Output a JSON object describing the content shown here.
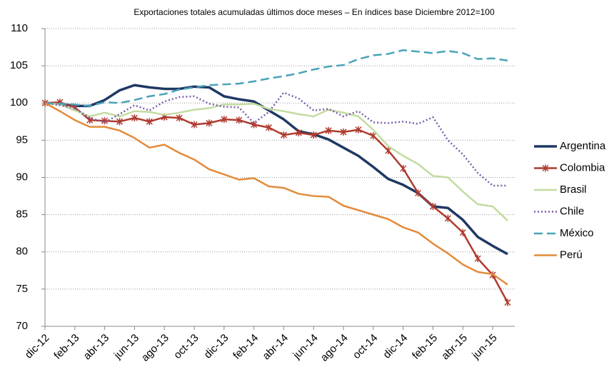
{
  "chart_data": {
    "type": "line",
    "title": "Exportaciones totales acumuladas últimos doce meses – En índices base Diciembre 2012=100",
    "categories": [
      "dic-12",
      null,
      "feb-13",
      null,
      "abr-13",
      null,
      "jun-13",
      null,
      "ago-13",
      null,
      "oct-13",
      null,
      "dic-13",
      null,
      "feb-14",
      null,
      "abr-14",
      null,
      "jun-14",
      null,
      "ago-14",
      null,
      "oct-14",
      null,
      "dic-14",
      null,
      "feb-15",
      null,
      "abr-15",
      null,
      "jun-15",
      null
    ],
    "ylim": [
      70,
      110
    ],
    "yticks": [
      70,
      75,
      80,
      85,
      90,
      95,
      100,
      105,
      110
    ],
    "grid": true,
    "legend": "right",
    "series": [
      {
        "name": "Argentina",
        "color": "#1f3864",
        "style": "solid",
        "values": [
          100,
          99.9,
          99.6,
          99.6,
          100.4,
          101.7,
          102.4,
          102.1,
          101.9,
          101.9,
          102.2,
          102.1,
          100.9,
          100.5,
          100.2,
          99.0,
          97.8,
          96.2,
          95.8,
          95.1,
          94.0,
          92.9,
          91.4,
          89.8,
          89.0,
          87.9,
          86.1,
          85.9,
          84.3,
          82.0,
          80.8,
          79.7
        ]
      },
      {
        "name": "Colombia",
        "color": "#b03a2e",
        "style": "star",
        "values": [
          100,
          100.1,
          99.4,
          97.7,
          97.6,
          97.5,
          98.0,
          97.5,
          98.1,
          98.0,
          97.1,
          97.3,
          97.8,
          97.7,
          97.1,
          96.7,
          95.7,
          96.0,
          95.7,
          96.3,
          96.1,
          96.4,
          95.6,
          93.6,
          91.2,
          87.9,
          86.1,
          84.5,
          82.6,
          79.1,
          76.9,
          73.2
        ]
      },
      {
        "name": "Brasil",
        "color": "#c3dca0",
        "style": "solid",
        "values": [
          100,
          99.8,
          99.0,
          98.2,
          98.7,
          98.2,
          98.9,
          98.8,
          98.4,
          98.7,
          99.1,
          99.3,
          99.8,
          99.8,
          99.9,
          99.2,
          98.9,
          98.5,
          98.2,
          99.1,
          98.7,
          98.2,
          96.4,
          94.2,
          92.9,
          91.8,
          90.2,
          90.0,
          88.1,
          86.4,
          86.1,
          84.2
        ]
      },
      {
        "name": "Chile",
        "color": "#7b5ea7",
        "style": "dotted",
        "values": [
          100,
          99.7,
          99.3,
          98.0,
          97.4,
          98.5,
          99.7,
          99.0,
          100.2,
          100.8,
          100.9,
          99.9,
          99.5,
          99.4,
          97.3,
          98.8,
          101.4,
          100.6,
          99.0,
          99.2,
          98.2,
          98.9,
          97.4,
          97.3,
          97.5,
          97.2,
          98.1,
          95.0,
          93.1,
          90.6,
          88.9,
          88.9
        ]
      },
      {
        "name": "México",
        "color": "#4aa3b8",
        "style": "dashed",
        "values": [
          100,
          99.9,
          99.8,
          99.6,
          100.1,
          100.0,
          100.4,
          100.9,
          101.2,
          101.8,
          102.1,
          102.4,
          102.5,
          102.6,
          102.9,
          103.3,
          103.6,
          104.0,
          104.5,
          104.9,
          105.1,
          105.9,
          106.4,
          106.6,
          107.1,
          106.9,
          106.7,
          107.0,
          106.7,
          105.9,
          106.0,
          105.7
        ]
      },
      {
        "name": "Perú",
        "color": "#e38b3a",
        "style": "solid",
        "values": [
          100,
          98.9,
          97.7,
          96.8,
          96.8,
          96.3,
          95.3,
          94.0,
          94.4,
          93.3,
          92.4,
          91.1,
          90.4,
          89.7,
          89.9,
          88.8,
          88.6,
          87.8,
          87.5,
          87.4,
          86.2,
          85.6,
          85.0,
          84.4,
          83.3,
          82.6,
          81.1,
          79.8,
          78.3,
          77.3,
          77.0,
          75.6
        ]
      }
    ]
  }
}
